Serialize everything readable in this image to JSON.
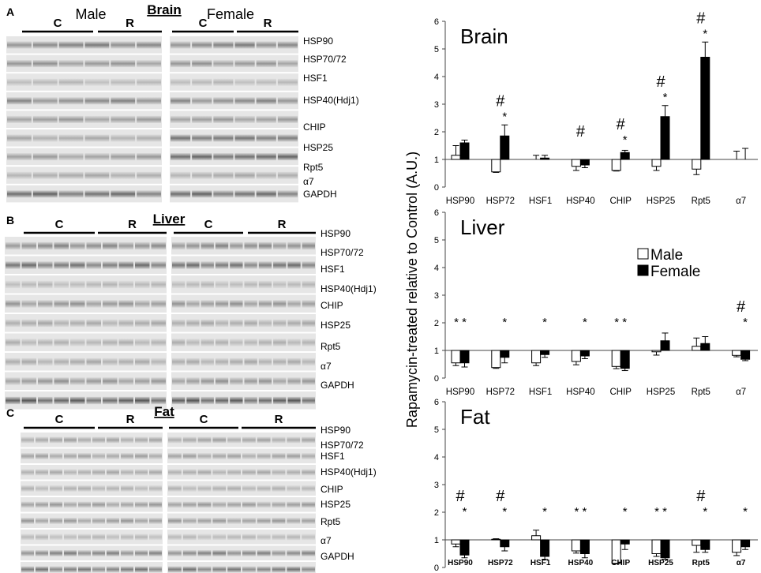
{
  "panels": [
    {
      "letter": "A",
      "title": "Brain",
      "sex_labels": [
        "Male",
        "Female"
      ],
      "group_labels": [
        "C",
        "R",
        "C",
        "R"
      ],
      "bands": [
        "HSP90",
        "HSP70/72",
        "HSF1",
        "HSP40(Hdj1)",
        "CHIP",
        "HSP25",
        "Rpt5",
        "α7",
        "GAPDH"
      ]
    },
    {
      "letter": "B",
      "title": "Liver",
      "group_labels": [
        "C",
        "R",
        "C",
        "R"
      ],
      "bands": [
        "HSP90",
        "HSP70/72",
        "HSF1",
        "HSP40(Hdj1)",
        "CHIP",
        "HSP25",
        "Rpt5",
        "α7",
        "GAPDH"
      ]
    },
    {
      "letter": "C",
      "title": "Fat",
      "group_labels": [
        "C",
        "R",
        "C",
        "R"
      ],
      "bands": [
        "HSP90",
        "HSP70/72",
        "HSF1",
        "HSP40(Hdj1)",
        "CHIP",
        "HSP25",
        "Rpt5",
        "α7",
        "GAPDH"
      ]
    }
  ],
  "ylabel": "Rapamycin-treated relative to Control (A.U.)",
  "colors": {
    "male": "#ffffff",
    "female": "#000000"
  },
  "chart_data": [
    {
      "type": "bar",
      "title": "Brain",
      "categories": [
        "HSP90",
        "HSP72",
        "HSF1",
        "HSP40",
        "CHIP",
        "HSP25",
        "Rpt5",
        "α7"
      ],
      "ylim": [
        0,
        6
      ],
      "yticks": [
        0,
        1,
        2,
        3,
        4,
        5,
        6
      ],
      "series": [
        {
          "name": "Male",
          "values": [
            1.15,
            0.55,
            1.0,
            0.75,
            0.6,
            0.75,
            0.65,
            1.0
          ],
          "errors": [
            0.35,
            0.02,
            0.15,
            0.15,
            0.02,
            0.15,
            0.2,
            0.3
          ]
        },
        {
          "name": "Female",
          "values": [
            1.6,
            1.85,
            1.05,
            0.8,
            1.25,
            2.55,
            4.7,
            1.0
          ],
          "errors": [
            0.1,
            0.4,
            0.1,
            0.1,
            0.08,
            0.4,
            0.55,
            0.4
          ]
        }
      ],
      "hash": [
        false,
        true,
        false,
        true,
        true,
        true,
        true,
        false
      ],
      "stars": [
        "",
        "*",
        "",
        "",
        "*",
        "*",
        "*",
        ""
      ],
      "legend": null
    },
    {
      "type": "bar",
      "title": "Liver",
      "categories": [
        "HSP90",
        "HSP72",
        "HSF1",
        "HSP40",
        "CHIP",
        "HSP25",
        "Rpt5",
        "α7"
      ],
      "ylim": [
        0,
        6
      ],
      "yticks": [
        0,
        1,
        2,
        3,
        4,
        5,
        6
      ],
      "series": [
        {
          "name": "Male",
          "values": [
            0.55,
            0.38,
            0.55,
            0.6,
            0.42,
            0.95,
            1.15,
            0.82
          ],
          "errors": [
            0.1,
            0.03,
            0.1,
            0.12,
            0.08,
            0.12,
            0.3,
            0.05
          ]
        },
        {
          "name": "Female",
          "values": [
            0.55,
            0.75,
            0.85,
            0.8,
            0.35,
            1.35,
            1.25,
            0.68
          ],
          "errors": [
            0.15,
            0.2,
            0.1,
            0.1,
            0.08,
            0.28,
            0.25,
            0.05
          ]
        }
      ],
      "hash": [
        false,
        false,
        false,
        false,
        false,
        false,
        false,
        true
      ],
      "stars": [
        "* *",
        "*",
        "*",
        "*",
        "* *",
        "",
        "",
        "*"
      ],
      "legend": {
        "male": "Male",
        "female": "Female"
      }
    },
    {
      "type": "bar",
      "title": "Fat",
      "categories": [
        "HSP90",
        "HSP72",
        "HSF1",
        "HSP40",
        "CHIP",
        "HSP25",
        "Rpt5",
        "α7"
      ],
      "ylim": [
        0,
        6
      ],
      "yticks": [
        0,
        1,
        2,
        3,
        4,
        5,
        6
      ],
      "series": [
        {
          "name": "Male",
          "values": [
            0.85,
            1.02,
            1.15,
            0.6,
            0.15,
            0.5,
            0.8,
            0.55
          ],
          "errors": [
            0.1,
            0.02,
            0.2,
            0.08,
            0.02,
            0.1,
            0.25,
            0.12
          ]
        },
        {
          "name": "Female",
          "values": [
            0.45,
            0.75,
            0.4,
            0.5,
            0.85,
            0.35,
            0.65,
            0.75
          ],
          "errors": [
            0.1,
            0.15,
            0.1,
            0.15,
            0.2,
            0.05,
            0.1,
            0.1
          ]
        }
      ],
      "hash": [
        true,
        true,
        false,
        false,
        false,
        false,
        true,
        false
      ],
      "stars": [
        "*",
        "*",
        "*",
        "* *",
        "*",
        "* *",
        "*",
        "*"
      ],
      "legend": null
    }
  ]
}
